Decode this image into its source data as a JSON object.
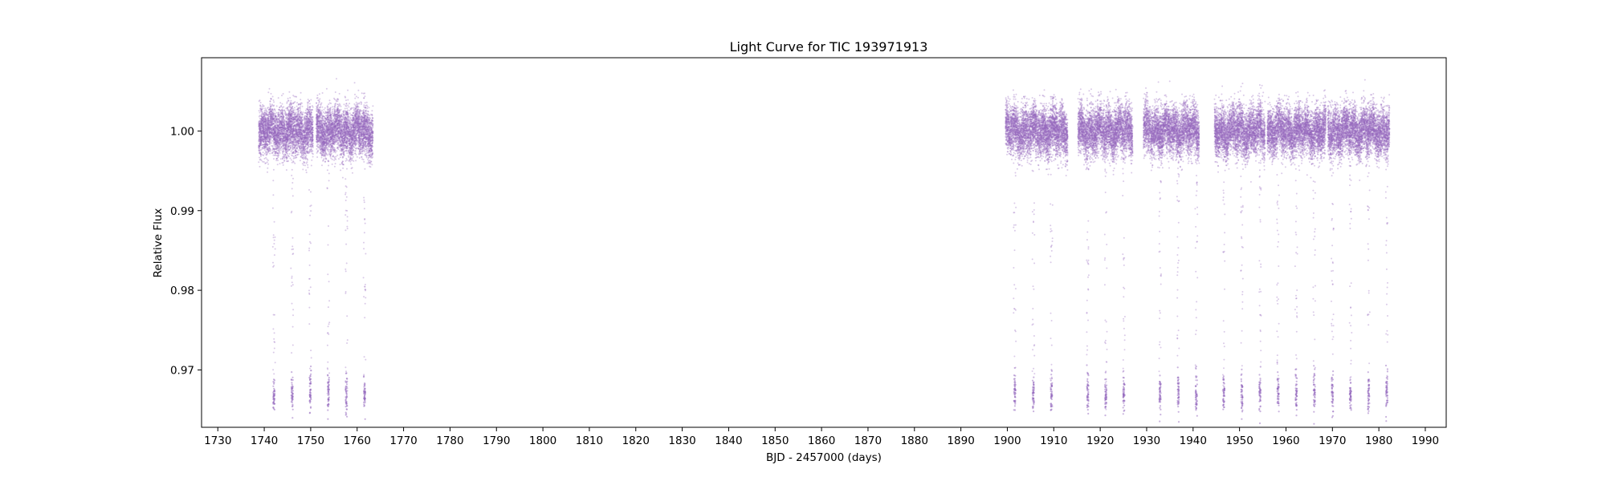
{
  "chart_data": {
    "type": "scatter",
    "title": "Light Curve for TIC 193971913",
    "xlabel": "BJD - 2457000 (days)",
    "ylabel": "Relative Flux",
    "xlim": [
      1726.5,
      1994.5
    ],
    "ylim": [
      0.9628,
      1.0092
    ],
    "x_ticks": [
      1730,
      1740,
      1750,
      1760,
      1770,
      1780,
      1790,
      1800,
      1810,
      1820,
      1830,
      1840,
      1850,
      1860,
      1870,
      1880,
      1890,
      1900,
      1910,
      1920,
      1930,
      1940,
      1950,
      1960,
      1970,
      1980,
      1990
    ],
    "x_tick_labels": [
      "1730",
      "1740",
      "1750",
      "1760",
      "1770",
      "1780",
      "1790",
      "1800",
      "1810",
      "1820",
      "1830",
      "1840",
      "1850",
      "1860",
      "1870",
      "1880",
      "1890",
      "1900",
      "1910",
      "1920",
      "1930",
      "1940",
      "1950",
      "1960",
      "1970",
      "1980",
      "1990"
    ],
    "y_ticks": [
      0.97,
      0.98,
      0.99,
      1.0
    ],
    "y_tick_labels": [
      "0.97",
      "0.98",
      "0.99",
      "1.00"
    ],
    "grid": false,
    "marker_color": "#9467bd",
    "baseline_flux": 1.0,
    "baseline_scatter": 0.0015,
    "transit_depth_flux": 0.967,
    "observation_segments": [
      [
        1738.8,
        1750.5
      ],
      [
        1751.2,
        1763.4
      ],
      [
        1899.6,
        1913.0
      ],
      [
        1915.2,
        1927.0
      ],
      [
        1929.3,
        1941.3
      ],
      [
        1944.6,
        1955.5
      ],
      [
        1956.0,
        1968.6
      ],
      [
        1969.0,
        1982.3
      ]
    ],
    "transit_times": [
      1742.1,
      1746.0,
      1749.9,
      1753.8,
      1757.7,
      1761.6,
      1901.6,
      1905.6,
      1909.5,
      1917.3,
      1921.2,
      1925.1,
      1932.9,
      1936.8,
      1940.7,
      1946.6,
      1950.5,
      1954.4,
      1958.3,
      1962.2,
      1966.1,
      1970.0,
      1973.9,
      1977.8,
      1981.7
    ]
  }
}
